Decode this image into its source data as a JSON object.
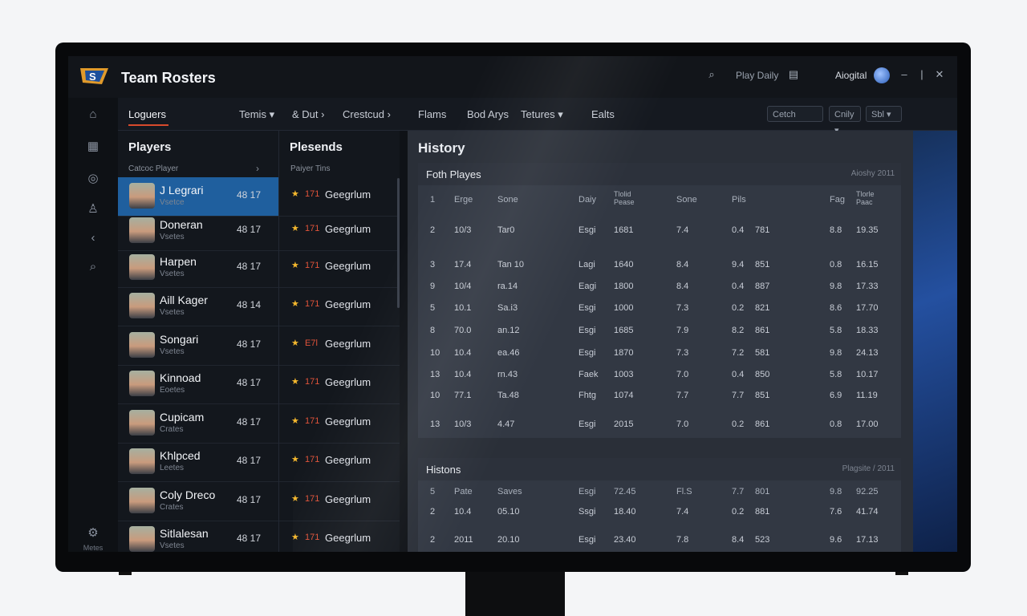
{
  "window": {
    "title": "Team Rosters",
    "top_right": {
      "play_daily": "Play Daily",
      "user_name": "Aiogital"
    }
  },
  "sidebar": {
    "bottom_label": "Metes"
  },
  "nav": {
    "items": [
      "Loguers",
      "Temis",
      "& Dut",
      "Crestcud",
      "Flams",
      "Bod Arys",
      "Tetures",
      "Ealts"
    ],
    "filters": [
      "Cetch",
      "Cnily",
      "Sbl"
    ]
  },
  "players": {
    "heading": "Players",
    "sub_label": "Catcoc Player",
    "list": [
      {
        "name": "J Legrari",
        "role": "Vsetce",
        "num": "48 17"
      },
      {
        "name": "Doneran",
        "role": "Vsetes",
        "num": "48 17"
      },
      {
        "name": "Harpen",
        "role": "Vsetes",
        "num": "48 17"
      },
      {
        "name": "Aill Kager",
        "role": "Vsetes",
        "num": "48 14"
      },
      {
        "name": "Songari",
        "role": "Vsetes",
        "num": "48 17"
      },
      {
        "name": "Kinnoad",
        "role": "Eoetes",
        "num": "48 17"
      },
      {
        "name": "Cupicam",
        "role": "Crates",
        "num": "48 17"
      },
      {
        "name": "Khlpced",
        "role": "Leetes",
        "num": "48 17"
      },
      {
        "name": "Coly Dreco",
        "role": "Crates",
        "num": "48 17"
      },
      {
        "name": "Sitlalesan",
        "role": "Vsetes",
        "num": "48 17"
      }
    ]
  },
  "seasons": {
    "heading": "Plesends",
    "sub_label": "Paiyer Tins",
    "list": [
      {
        "val": "171",
        "name": "Geegrlum"
      },
      {
        "val": "171",
        "name": "Geegrlum"
      },
      {
        "val": "171",
        "name": "Geegrlum"
      },
      {
        "val": "171",
        "name": "Geegrlum"
      },
      {
        "val": "E7l",
        "name": "Geegrlum"
      },
      {
        "val": "171",
        "name": "Geegrlum"
      },
      {
        "val": "171",
        "name": "Geegrlum"
      },
      {
        "val": "171",
        "name": "Geegrlum"
      },
      {
        "val": "171",
        "name": "Geegrlum"
      },
      {
        "val": "171",
        "name": "Geegrlum"
      }
    ]
  },
  "history": {
    "title": "History",
    "panel1": {
      "title": "Foth Playes",
      "meta": "Aioshy 2011",
      "headers": [
        "1",
        "Erge",
        "Sone",
        "Daiy",
        "Tlolid Pease",
        "Sone",
        "Pils",
        "Fag",
        "Tlorle Paac"
      ],
      "rows": [
        [
          "2",
          "10/3",
          "Tar0",
          "Esgi",
          "1681",
          "7.4",
          "0.4",
          "781",
          "8.8",
          "19.35"
        ],
        [
          "3",
          "17.4",
          "Tan 10",
          "Lagi",
          "1640",
          "8.4",
          "9.4",
          "851",
          "0.8",
          "16.15"
        ],
        [
          "9",
          "10/4",
          "ra.14",
          "Eagi",
          "1800",
          "8.4",
          "0.4",
          "887",
          "9.8",
          "17.33"
        ],
        [
          "5",
          "10.1",
          "Sa.i3",
          "Esgi",
          "1000",
          "7.3",
          "0.2",
          "821",
          "8.6",
          "17.70"
        ],
        [
          "8",
          "70.0",
          "an.12",
          "Esgi",
          "1685",
          "7.9",
          "8.2",
          "861",
          "5.8",
          "18.33"
        ],
        [
          "10",
          "10.4",
          "ea.46",
          "Esgi",
          "1870",
          "7.3",
          "7.2",
          "581",
          "9.8",
          "24.13"
        ],
        [
          "13",
          "10.4",
          "rn.43",
          "Faek",
          "1003",
          "7.0",
          "0.4",
          "850",
          "5.8",
          "10.17"
        ],
        [
          "10",
          "77.1",
          "Ta.48",
          "Fhtg",
          "1074",
          "7.7",
          "7.7",
          "851",
          "6.9",
          "11.19"
        ],
        [
          "13",
          "10/3",
          "4.47",
          "Esgi",
          "2015",
          "7.0",
          "0.2",
          "861",
          "0.8",
          "17.00"
        ]
      ]
    },
    "panel2": {
      "title": "Histons",
      "meta": "Plagsite / 2011",
      "headers": [
        "5",
        "Pate",
        "Saves",
        "Esgi",
        "72.45",
        "Fl.S",
        "7.7",
        "801",
        "9.8",
        "92.25"
      ],
      "rows": [
        [
          "2",
          "10.4",
          "05.10",
          "Ssgi",
          "18.40",
          "7.4",
          "0.2",
          "881",
          "7.6",
          "41.74"
        ],
        [
          "2",
          "2011",
          "20.10",
          "Esgi",
          "23.40",
          "7.8",
          "8.4",
          "523",
          "9.6",
          "17.13"
        ]
      ]
    }
  }
}
